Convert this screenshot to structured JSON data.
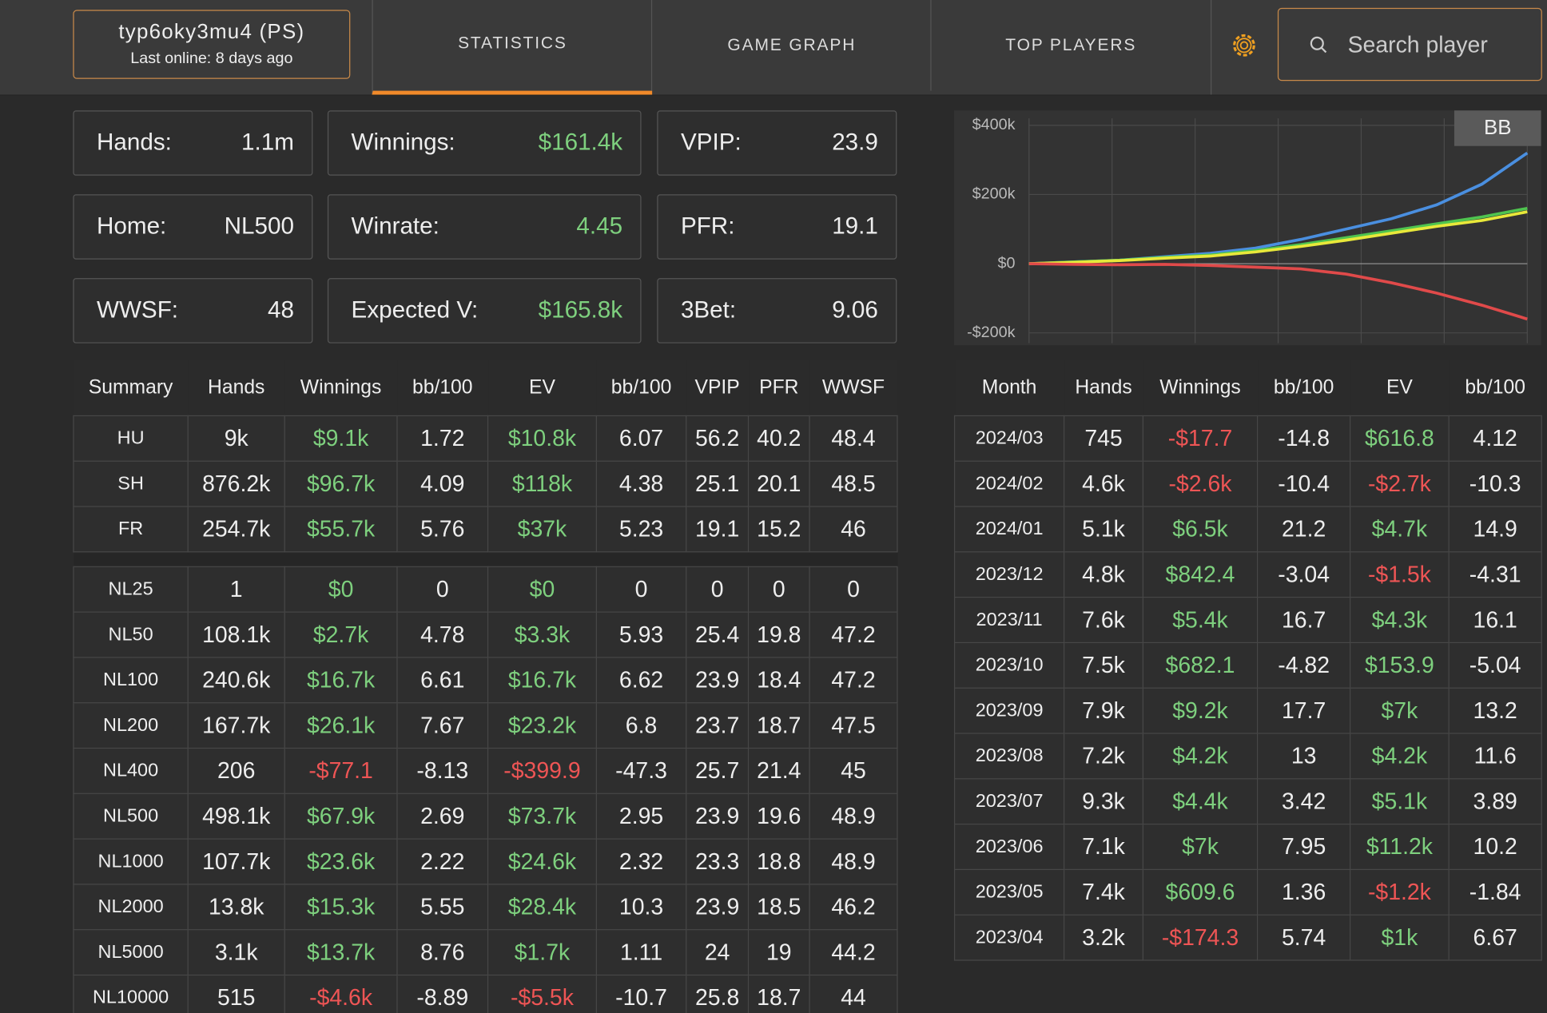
{
  "header": {
    "profile": {
      "name": "typ6oky3mu4 (PS)",
      "last_online": "Last online: 8 days ago"
    },
    "tabs": [
      "STATISTICS",
      "GAME GRAPH",
      "TOP PLAYERS"
    ],
    "search_placeholder": "Search player"
  },
  "stats": [
    {
      "label": "Hands:",
      "value": "1.1m"
    },
    {
      "label": "Winnings:",
      "value": "$161.4k"
    },
    {
      "label": "VPIP:",
      "value": "23.9"
    },
    {
      "label": "Home:",
      "value": "NL500"
    },
    {
      "label": "Winrate:",
      "value": "4.45"
    },
    {
      "label": "PFR:",
      "value": "19.1"
    },
    {
      "label": "WWSF:",
      "value": "48"
    },
    {
      "label": "Expected V:",
      "value": "$165.8k"
    },
    {
      "label": "3Bet:",
      "value": "9.06"
    }
  ],
  "summary_table": {
    "columns": [
      "Summary",
      "Hands",
      "Winnings",
      "bb/100",
      "EV",
      "bb/100",
      "VPIP",
      "PFR",
      "WWSF"
    ],
    "groups": [
      [
        [
          "HU",
          "9k",
          "$9.1k",
          "1.72",
          "$10.8k",
          "6.07",
          "56.2",
          "40.2",
          "48.4"
        ],
        [
          "SH",
          "876.2k",
          "$96.7k",
          "4.09",
          "$118k",
          "4.38",
          "25.1",
          "20.1",
          "48.5"
        ],
        [
          "FR",
          "254.7k",
          "$55.7k",
          "5.76",
          "$37k",
          "5.23",
          "19.1",
          "15.2",
          "46"
        ]
      ],
      [
        [
          "NL25",
          "1",
          "$0",
          "0",
          "$0",
          "0",
          "0",
          "0",
          "0"
        ],
        [
          "NL50",
          "108.1k",
          "$2.7k",
          "4.78",
          "$3.3k",
          "5.93",
          "25.4",
          "19.8",
          "47.2"
        ],
        [
          "NL100",
          "240.6k",
          "$16.7k",
          "6.61",
          "$16.7k",
          "6.62",
          "23.9",
          "18.4",
          "47.2"
        ],
        [
          "NL200",
          "167.7k",
          "$26.1k",
          "7.67",
          "$23.2k",
          "6.8",
          "23.7",
          "18.7",
          "47.5"
        ],
        [
          "NL400",
          "206",
          "-$77.1",
          "-8.13",
          "-$399.9",
          "-47.3",
          "25.7",
          "21.4",
          "45"
        ],
        [
          "NL500",
          "498.1k",
          "$67.9k",
          "2.69",
          "$73.7k",
          "2.95",
          "23.9",
          "19.6",
          "48.9"
        ],
        [
          "NL1000",
          "107.7k",
          "$23.6k",
          "2.22",
          "$24.6k",
          "2.32",
          "23.3",
          "18.8",
          "48.9"
        ],
        [
          "NL2000",
          "13.8k",
          "$15.3k",
          "5.55",
          "$28.4k",
          "10.3",
          "23.9",
          "18.5",
          "46.2"
        ],
        [
          "NL5000",
          "3.1k",
          "$13.7k",
          "8.76",
          "$1.7k",
          "1.11",
          "24",
          "19",
          "44.2"
        ],
        [
          "NL10000",
          "515",
          "-$4.6k",
          "-8.89",
          "-$5.5k",
          "-10.7",
          "25.8",
          "18.7",
          "44"
        ]
      ]
    ]
  },
  "month_table": {
    "columns": [
      "Month",
      "Hands",
      "Winnings",
      "bb/100",
      "EV",
      "bb/100"
    ],
    "rows": [
      [
        "2024/03",
        "745",
        "-$17.7",
        "-14.8",
        "$616.8",
        "4.12"
      ],
      [
        "2024/02",
        "4.6k",
        "-$2.6k",
        "-10.4",
        "-$2.7k",
        "-10.3"
      ],
      [
        "2024/01",
        "5.1k",
        "$6.5k",
        "21.2",
        "$4.7k",
        "14.9"
      ],
      [
        "2023/12",
        "4.8k",
        "$842.4",
        "-3.04",
        "-$1.5k",
        "-4.31"
      ],
      [
        "2023/11",
        "7.6k",
        "$5.4k",
        "16.7",
        "$4.3k",
        "16.1"
      ],
      [
        "2023/10",
        "7.5k",
        "$682.1",
        "-4.82",
        "$153.9",
        "-5.04"
      ],
      [
        "2023/09",
        "7.9k",
        "$9.2k",
        "17.7",
        "$7k",
        "13.2"
      ],
      [
        "2023/08",
        "7.2k",
        "$4.2k",
        "13",
        "$4.2k",
        "11.6"
      ],
      [
        "2023/07",
        "9.3k",
        "$4.4k",
        "3.42",
        "$5.1k",
        "3.89"
      ],
      [
        "2023/06",
        "7.1k",
        "$7k",
        "7.95",
        "$11.2k",
        "10.2"
      ],
      [
        "2023/05",
        "7.4k",
        "$609.6",
        "1.36",
        "-$1.2k",
        "-1.84"
      ],
      [
        "2023/04",
        "3.2k",
        "-$174.3",
        "5.74",
        "$1k",
        "6.67"
      ]
    ]
  },
  "chart_data": {
    "type": "line",
    "unit_toggle": "BB",
    "ylim": [
      -230000,
      420000
    ],
    "yticks": [
      {
        "value": 400000,
        "label": "$400k"
      },
      {
        "value": 200000,
        "label": "$200k"
      },
      {
        "value": 0,
        "label": "$0"
      },
      {
        "value": -200000,
        "label": "-$200k"
      }
    ],
    "series": [
      {
        "color": "#4a8fe0",
        "values": [
          0,
          5000,
          10000,
          20000,
          30000,
          45000,
          70000,
          100000,
          130000,
          170000,
          230000,
          320000
        ]
      },
      {
        "color": "#4fc44f",
        "values": [
          0,
          5000,
          10000,
          18000,
          25000,
          38000,
          55000,
          75000,
          95000,
          115000,
          135000,
          160000
        ]
      },
      {
        "color": "#e8e83a",
        "values": [
          0,
          4000,
          9000,
          16000,
          22000,
          34000,
          50000,
          68000,
          88000,
          108000,
          125000,
          150000
        ]
      },
      {
        "color": "#e04a4a",
        "values": [
          0,
          -2000,
          -3000,
          -2000,
          -5000,
          -10000,
          -15000,
          -30000,
          -55000,
          -85000,
          -120000,
          -160000
        ]
      }
    ]
  }
}
